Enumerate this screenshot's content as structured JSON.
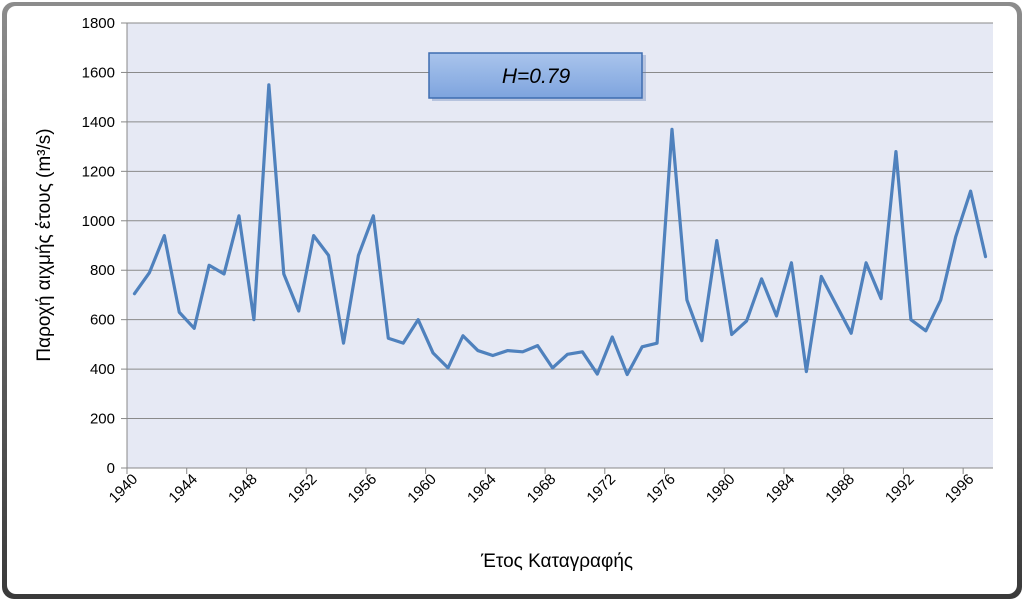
{
  "chart_data": {
    "type": "line",
    "x_label": "Έτος Καταγραφής",
    "y_label": "Παροχή αιχμής έτους (m³/s)",
    "annotation": "H=0.79",
    "categories": [
      "1940",
      null,
      null,
      null,
      "1944",
      null,
      null,
      null,
      "1948",
      null,
      null,
      null,
      "1952",
      null,
      null,
      null,
      "1956",
      null,
      null,
      null,
      "1960",
      null,
      null,
      null,
      "1964",
      null,
      null,
      null,
      "1968",
      null,
      null,
      null,
      "1972",
      null,
      null,
      null,
      "1976",
      null,
      null,
      null,
      "1980",
      null,
      null,
      null,
      "1984",
      null,
      null,
      null,
      "1988",
      null,
      null,
      null,
      "1992",
      null,
      null,
      null,
      "1996",
      null
    ],
    "values": [
      705,
      790,
      940,
      630,
      565,
      820,
      785,
      1020,
      600,
      1550,
      785,
      635,
      940,
      860,
      505,
      860,
      1020,
      525,
      505,
      600,
      465,
      405,
      535,
      475,
      455,
      475,
      470,
      495,
      405,
      460,
      470,
      380,
      530,
      378,
      490,
      505,
      1370,
      680,
      515,
      920,
      540,
      595,
      765,
      615,
      830,
      390,
      775,
      660,
      545,
      830,
      685,
      1280,
      600,
      555,
      680,
      935,
      1120,
      855
    ],
    "color": "#4f81bd",
    "ylim": [
      0,
      1800
    ],
    "yticks": [
      0,
      200,
      400,
      600,
      800,
      1000,
      1200,
      1400,
      1600,
      1800
    ],
    "grid": true
  }
}
